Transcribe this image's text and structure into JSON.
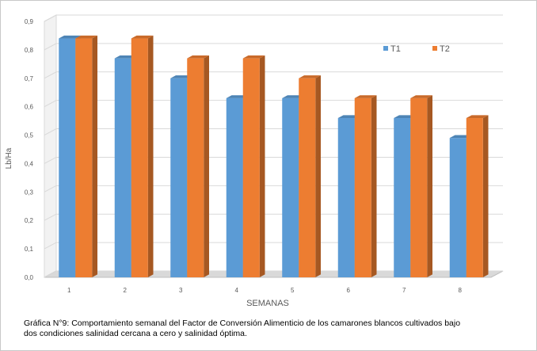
{
  "chart_data": {
    "type": "bar",
    "style": "3d-clustered-column",
    "xlabel": "SEMANAS",
    "ylabel": "Lb/Ha",
    "ylim": [
      0,
      0.9
    ],
    "yticks": [
      "0,0",
      "0,1",
      "0,2",
      "0,3",
      "0,4",
      "0,5",
      "0,6",
      "0,7",
      "0,8",
      "0,9"
    ],
    "categories": [
      "1",
      "2",
      "3",
      "4",
      "5",
      "6",
      "7",
      "8"
    ],
    "series": [
      {
        "name": "T1",
        "color": "#5b9bd5",
        "values": [
          0.84,
          0.77,
          0.7,
          0.63,
          0.63,
          0.56,
          0.56,
          0.49
        ]
      },
      {
        "name": "T2",
        "color": "#ed7d31",
        "values": [
          0.84,
          0.84,
          0.77,
          0.77,
          0.7,
          0.63,
          0.63,
          0.56
        ]
      }
    ],
    "grid": true,
    "legend": "top-right"
  },
  "caption": {
    "line1": "Gráfica N°9: Comportamiento semanal del Factor de Conversión Alimenticio de los camarones blancos cultivados bajo",
    "line2": "dos condiciones salinidad cercana a cero y salinidad óptima."
  }
}
